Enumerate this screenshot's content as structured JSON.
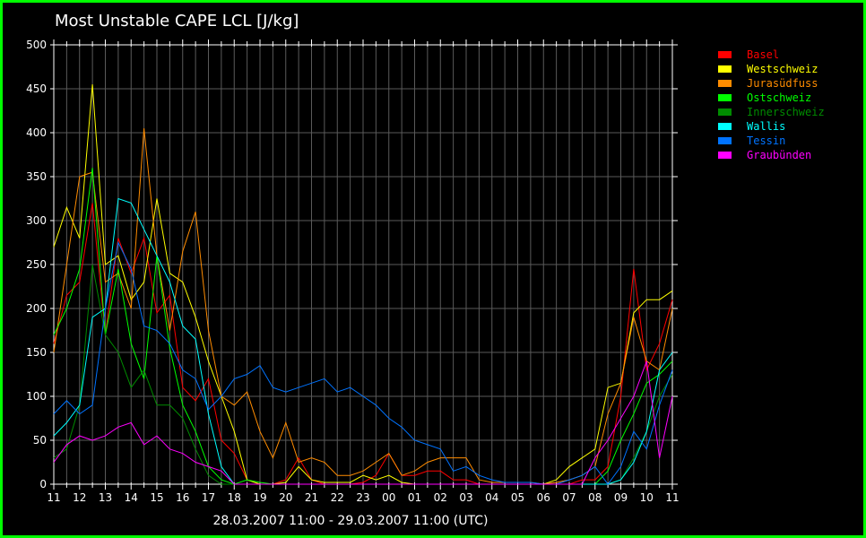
{
  "chart_data": {
    "type": "line",
    "title": "Most Unstable CAPE LCL [J/kg]",
    "subtitle": "28.03.2007 11:00 - 29.03.2007 11:00  (UTC)",
    "ylim": [
      0,
      500
    ],
    "yticks": [
      0,
      50,
      100,
      150,
      200,
      250,
      300,
      350,
      400,
      450,
      500
    ],
    "xtick_labels": [
      "11",
      "12",
      "13",
      "14",
      "15",
      "16",
      "17",
      "18",
      "19",
      "20",
      "21",
      "22",
      "23",
      "00",
      "01",
      "02",
      "03",
      "04",
      "05",
      "06",
      "07",
      "08",
      "09",
      "10",
      "11"
    ],
    "grid": true,
    "legend_position": "right",
    "x": [
      "11:00",
      "11:30",
      "12:00",
      "12:30",
      "13:00",
      "13:30",
      "14:00",
      "14:30",
      "15:00",
      "15:30",
      "16:00",
      "16:30",
      "17:00",
      "17:30",
      "18:00",
      "18:30",
      "19:00",
      "19:30",
      "20:00",
      "20:30",
      "21:00",
      "21:30",
      "22:00",
      "22:30",
      "23:00",
      "23:30",
      "00:00",
      "00:30",
      "01:00",
      "01:30",
      "02:00",
      "02:30",
      "03:00",
      "03:30",
      "04:00",
      "04:30",
      "05:00",
      "05:30",
      "06:00",
      "06:30",
      "07:00",
      "07:30",
      "08:00",
      "08:30",
      "09:00",
      "09:30",
      "10:00",
      "10:30",
      "11:00"
    ],
    "series": [
      {
        "name": "Basel",
        "color": "#ff0000",
        "values": [
          160,
          215,
          230,
          320,
          170,
          280,
          240,
          280,
          195,
          215,
          110,
          95,
          120,
          50,
          35,
          5,
          0,
          0,
          5,
          30,
          5,
          0,
          0,
          0,
          2,
          10,
          35,
          10,
          10,
          15,
          15,
          5,
          5,
          0,
          0,
          0,
          0,
          0,
          0,
          0,
          0,
          5,
          5,
          20,
          100,
          245,
          130,
          160,
          210
        ]
      },
      {
        "name": "Westschweiz",
        "color": "#ffff00",
        "values": [
          270,
          315,
          280,
          455,
          250,
          260,
          210,
          230,
          325,
          240,
          230,
          190,
          140,
          100,
          60,
          5,
          0,
          0,
          2,
          20,
          5,
          2,
          2,
          2,
          10,
          5,
          10,
          2,
          0,
          0,
          0,
          0,
          0,
          0,
          0,
          0,
          0,
          0,
          0,
          5,
          20,
          30,
          40,
          110,
          115,
          195,
          210,
          210,
          220
        ]
      },
      {
        "name": "Jurasüdfuss",
        "color": "#ff8c00",
        "values": [
          150,
          250,
          350,
          355,
          230,
          240,
          200,
          405,
          260,
          175,
          265,
          310,
          175,
          100,
          90,
          105,
          60,
          30,
          70,
          25,
          30,
          25,
          10,
          10,
          15,
          25,
          35,
          10,
          15,
          25,
          30,
          30,
          30,
          5,
          2,
          2,
          2,
          2,
          0,
          2,
          5,
          10,
          20,
          80,
          115,
          190,
          140,
          130,
          200
        ]
      },
      {
        "name": "Ostschweiz",
        "color": "#00ff00",
        "values": [
          170,
          200,
          245,
          360,
          170,
          245,
          160,
          120,
          260,
          155,
          90,
          60,
          20,
          5,
          0,
          5,
          2,
          0,
          0,
          0,
          0,
          0,
          0,
          0,
          0,
          0,
          0,
          0,
          0,
          0,
          0,
          0,
          0,
          0,
          0,
          0,
          0,
          0,
          0,
          0,
          0,
          0,
          0,
          15,
          50,
          80,
          115,
          125,
          140
        ]
      },
      {
        "name": "Innerschweiz",
        "color": "#008c00",
        "values": [
          30,
          40,
          90,
          250,
          170,
          150,
          110,
          130,
          90,
          90,
          75,
          40,
          10,
          0,
          0,
          0,
          0,
          0,
          0,
          0,
          0,
          0,
          0,
          0,
          0,
          0,
          0,
          0,
          0,
          0,
          0,
          0,
          0,
          0,
          0,
          0,
          0,
          0,
          0,
          0,
          0,
          0,
          0,
          0,
          5,
          30,
          60,
          100,
          125
        ]
      },
      {
        "name": "Wallis",
        "color": "#00ffff",
        "values": [
          55,
          70,
          90,
          190,
          200,
          325,
          320,
          290,
          260,
          230,
          180,
          165,
          80,
          20,
          0,
          0,
          0,
          0,
          0,
          0,
          0,
          0,
          0,
          0,
          0,
          0,
          0,
          0,
          0,
          0,
          0,
          0,
          0,
          0,
          0,
          0,
          0,
          0,
          0,
          0,
          0,
          0,
          0,
          0,
          5,
          25,
          60,
          130,
          150
        ]
      },
      {
        "name": "Tessin",
        "color": "#0073ff",
        "values": [
          80,
          95,
          80,
          90,
          200,
          275,
          245,
          180,
          175,
          160,
          130,
          120,
          85,
          100,
          120,
          125,
          135,
          110,
          105,
          110,
          115,
          120,
          105,
          110,
          100,
          90,
          75,
          65,
          50,
          45,
          40,
          15,
          20,
          10,
          5,
          2,
          2,
          2,
          0,
          0,
          5,
          10,
          20,
          0,
          20,
          60,
          40,
          90,
          130
        ]
      },
      {
        "name": "Graubünden",
        "color": "#ff00ff",
        "values": [
          25,
          45,
          55,
          50,
          55,
          65,
          70,
          45,
          55,
          40,
          35,
          25,
          20,
          15,
          0,
          0,
          0,
          0,
          0,
          0,
          0,
          0,
          0,
          0,
          0,
          0,
          0,
          0,
          0,
          0,
          0,
          0,
          0,
          0,
          0,
          0,
          0,
          0,
          0,
          0,
          0,
          0,
          30,
          50,
          75,
          100,
          140,
          30,
          100
        ]
      }
    ]
  }
}
